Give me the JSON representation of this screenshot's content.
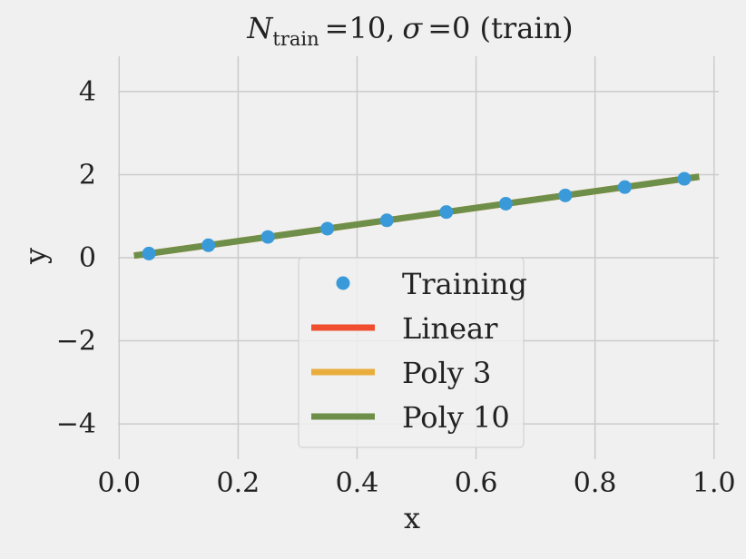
{
  "chart_data": {
    "type": "line",
    "title": {
      "n_symbol": "N",
      "n_subscript": "train",
      "n_value": "=10,",
      "sigma_symbol": "σ",
      "sigma_value": "=0 (train)"
    },
    "xlabel": "x",
    "ylabel": "y",
    "xlim": [
      -0.002,
      1.008
    ],
    "ylim": [
      -4.85,
      4.85
    ],
    "xticks": [
      0.0,
      0.2,
      0.4,
      0.6,
      0.8,
      1.0
    ],
    "xtick_labels": [
      "0.0",
      "0.2",
      "0.4",
      "0.6",
      "0.8",
      "1.0"
    ],
    "yticks": [
      4,
      2,
      0,
      -2,
      -4
    ],
    "ytick_labels": [
      "4",
      "2",
      "0",
      "−2",
      "−4"
    ],
    "grid": true,
    "legend_position": "lower-center",
    "training": {
      "name": "Training",
      "color": "#3a9ad9",
      "x": [
        0.05,
        0.15,
        0.25,
        0.35,
        0.45,
        0.55,
        0.65,
        0.75,
        0.85,
        0.95
      ],
      "y": [
        0.1,
        0.3,
        0.5,
        0.7,
        0.9,
        1.1,
        1.3,
        1.5,
        1.7,
        1.9
      ]
    },
    "series": [
      {
        "name": "Linear",
        "color": "#f04e2e",
        "x": [
          0.025,
          0.975
        ],
        "y": [
          0.05,
          1.95
        ]
      },
      {
        "name": "Poly 3",
        "color": "#e8ad3c",
        "x": [
          0.025,
          0.975
        ],
        "y": [
          0.05,
          1.95
        ]
      },
      {
        "name": "Poly 10",
        "color": "#6d8f4a",
        "x": [
          0.025,
          0.975
        ],
        "y": [
          0.05,
          1.95
        ]
      }
    ]
  }
}
